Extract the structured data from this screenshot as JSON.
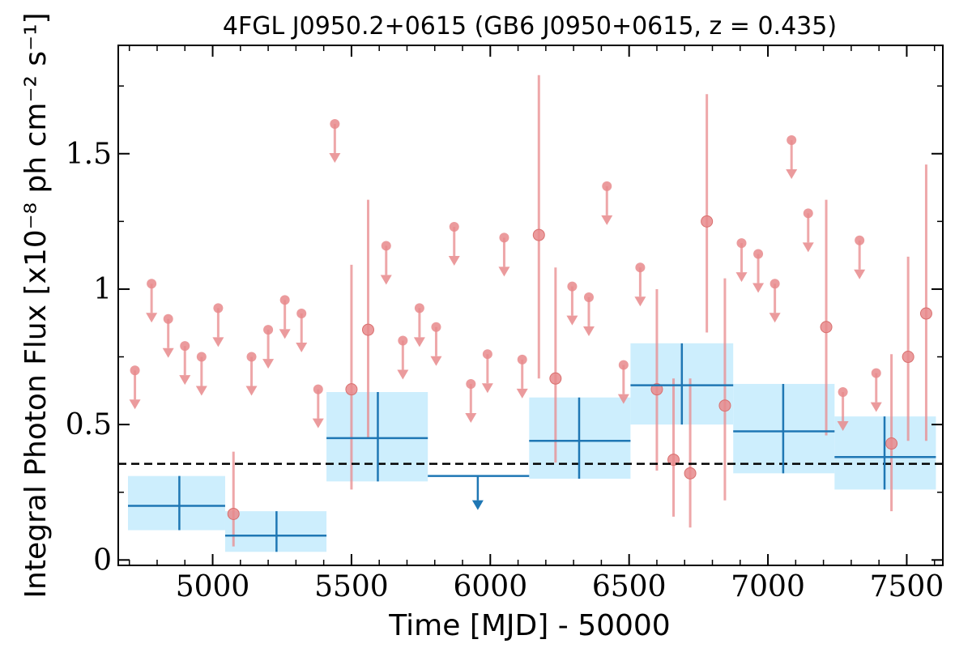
{
  "chart_data": {
    "type": "scatter",
    "title": "4FGL J0950.2+0615 (GB6 J0950+0615, z = 0.435)",
    "xlabel": "Time [MJD] - 50000",
    "ylabel": "Integral Photon Flux [x10⁻⁸ ph cm⁻² s⁻¹]",
    "xlim": [
      4660,
      7630
    ],
    "ylim": [
      -0.02,
      1.9
    ],
    "x_ticks": [
      5000,
      5500,
      6000,
      6500,
      7000,
      7500
    ],
    "x_tick_labels": [
      "5000",
      "5500",
      "6000",
      "6500",
      "7000",
      "7500"
    ],
    "y_ticks": [
      0,
      0.5,
      1,
      1.5
    ],
    "y_tick_labels": [
      "0",
      "0.5",
      "1",
      "1.5"
    ],
    "grid": false,
    "reference_line": {
      "y": 0.355,
      "style": "dashed",
      "color": "#000000"
    },
    "colors": {
      "fine_bins": "#e88a8c",
      "coarse_bins": "#1f77b4",
      "coarse_band": "#cdeefd"
    },
    "fine_detections": [
      {
        "x": 5075,
        "y": 0.17,
        "lo": 0.05,
        "hi": 0.4
      },
      {
        "x": 5500,
        "y": 0.63,
        "lo": 0.26,
        "hi": 1.09
      },
      {
        "x": 5560,
        "y": 0.85,
        "lo": 0.45,
        "hi": 1.33
      },
      {
        "x": 6175,
        "y": 1.2,
        "lo": 0.67,
        "hi": 1.79
      },
      {
        "x": 6235,
        "y": 0.67,
        "lo": 0.36,
        "hi": 1.08
      },
      {
        "x": 6600,
        "y": 0.63,
        "lo": 0.33,
        "hi": 1.0
      },
      {
        "x": 6660,
        "y": 0.37,
        "lo": 0.16,
        "hi": 0.67
      },
      {
        "x": 6720,
        "y": 0.32,
        "lo": 0.12,
        "hi": 0.67
      },
      {
        "x": 6780,
        "y": 1.25,
        "lo": 0.84,
        "hi": 1.72
      },
      {
        "x": 6845,
        "y": 0.57,
        "lo": 0.22,
        "hi": 1.04
      },
      {
        "x": 7210,
        "y": 0.86,
        "lo": 0.46,
        "hi": 1.33
      },
      {
        "x": 7445,
        "y": 0.43,
        "lo": 0.18,
        "hi": 0.76
      },
      {
        "x": 7505,
        "y": 0.75,
        "lo": 0.44,
        "hi": 1.12
      },
      {
        "x": 7570,
        "y": 0.91,
        "lo": 0.44,
        "hi": 1.46
      }
    ],
    "fine_upper_limits": [
      {
        "x": 4720,
        "y": 0.7
      },
      {
        "x": 4780,
        "y": 1.02
      },
      {
        "x": 4840,
        "y": 0.89
      },
      {
        "x": 4900,
        "y": 0.79
      },
      {
        "x": 4960,
        "y": 0.75
      },
      {
        "x": 5020,
        "y": 0.93
      },
      {
        "x": 5140,
        "y": 0.75
      },
      {
        "x": 5200,
        "y": 0.85
      },
      {
        "x": 5260,
        "y": 0.96
      },
      {
        "x": 5320,
        "y": 0.91
      },
      {
        "x": 5380,
        "y": 0.63
      },
      {
        "x": 5440,
        "y": 1.61
      },
      {
        "x": 5625,
        "y": 1.16
      },
      {
        "x": 5685,
        "y": 0.81
      },
      {
        "x": 5745,
        "y": 0.93
      },
      {
        "x": 5805,
        "y": 0.86
      },
      {
        "x": 5870,
        "y": 1.23
      },
      {
        "x": 5930,
        "y": 0.65
      },
      {
        "x": 5990,
        "y": 0.76
      },
      {
        "x": 6050,
        "y": 1.19
      },
      {
        "x": 6115,
        "y": 0.74
      },
      {
        "x": 6295,
        "y": 1.01
      },
      {
        "x": 6355,
        "y": 0.97
      },
      {
        "x": 6420,
        "y": 1.38
      },
      {
        "x": 6480,
        "y": 0.72
      },
      {
        "x": 6540,
        "y": 1.08
      },
      {
        "x": 6905,
        "y": 1.17
      },
      {
        "x": 6965,
        "y": 1.13
      },
      {
        "x": 7025,
        "y": 1.02
      },
      {
        "x": 7085,
        "y": 1.55
      },
      {
        "x": 7145,
        "y": 1.28
      },
      {
        "x": 7270,
        "y": 0.62
      },
      {
        "x": 7390,
        "y": 0.69
      },
      {
        "x": 7330,
        "y": 1.18
      }
    ],
    "coarse_detections": [
      {
        "x": 4880,
        "x0": 4695,
        "x1": 5045,
        "y": 0.2,
        "lo": 0.11,
        "hi": 0.31
      },
      {
        "x": 5230,
        "x0": 5045,
        "x1": 5410,
        "y": 0.09,
        "lo": 0.03,
        "hi": 0.18
      },
      {
        "x": 5595,
        "x0": 5410,
        "x1": 5775,
        "y": 0.45,
        "lo": 0.29,
        "hi": 0.62
      },
      {
        "x": 6320,
        "x0": 6140,
        "x1": 6505,
        "y": 0.44,
        "lo": 0.3,
        "hi": 0.6
      },
      {
        "x": 6690,
        "x0": 6505,
        "x1": 6875,
        "y": 0.645,
        "lo": 0.5,
        "hi": 0.8
      },
      {
        "x": 7055,
        "x0": 6875,
        "x1": 7240,
        "y": 0.475,
        "lo": 0.32,
        "hi": 0.65
      },
      {
        "x": 7420,
        "x0": 7240,
        "x1": 7605,
        "y": 0.38,
        "lo": 0.26,
        "hi": 0.53
      }
    ],
    "coarse_upper_limits": [
      {
        "x": 5955,
        "x0": 5775,
        "x1": 6140,
        "y": 0.31
      }
    ]
  }
}
